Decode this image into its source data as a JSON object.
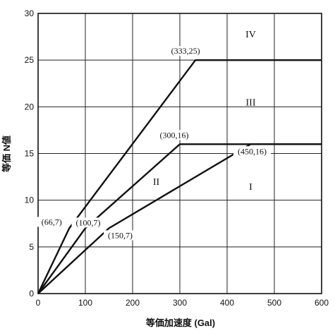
{
  "chart_data": {
    "type": "line",
    "xlabel": "等価加速度 (Gal)",
    "ylabel": "等価 N値",
    "xlim": [
      0,
      600
    ],
    "ylim": [
      0,
      30
    ],
    "x_ticks": [
      0,
      100,
      200,
      300,
      400,
      500,
      600
    ],
    "y_ticks": [
      0,
      5,
      10,
      15,
      20,
      25,
      30
    ],
    "grid": true,
    "series": [
      {
        "values": [
          [
            0,
            0
          ],
          [
            66,
            7
          ],
          [
            333,
            25
          ],
          [
            600,
            25
          ]
        ]
      },
      {
        "values": [
          [
            0,
            0
          ],
          [
            100,
            7
          ],
          [
            300,
            16
          ],
          [
            600,
            16
          ]
        ]
      },
      {
        "values": [
          [
            0,
            0
          ],
          [
            150,
            7
          ],
          [
            450,
            16
          ],
          [
            600,
            16
          ]
        ]
      }
    ],
    "point_labels": [
      {
        "text": "(66,7)",
        "x": 66,
        "y": 7
      },
      {
        "text": "(100,7)",
        "x": 100,
        "y": 7
      },
      {
        "text": "(150,7)",
        "x": 150,
        "y": 7
      },
      {
        "text": "(300,16)",
        "x": 300,
        "y": 16
      },
      {
        "text": "(333,25)",
        "x": 333,
        "y": 25
      },
      {
        "text": "(450,16)",
        "x": 450,
        "y": 16
      }
    ],
    "region_labels": [
      {
        "text": "IV",
        "x": 450,
        "y": 27.8
      },
      {
        "text": "III",
        "x": 450,
        "y": 20.5
      },
      {
        "text": "II",
        "x": 250,
        "y": 12
      },
      {
        "text": "I",
        "x": 450,
        "y": 11.5
      }
    ]
  }
}
